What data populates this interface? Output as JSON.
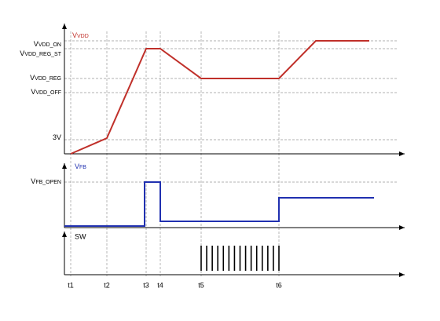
{
  "signals": {
    "vdd": {
      "name": {
        "main": "V",
        "sub": "VDD"
      },
      "levels": [
        {
          "main": "V",
          "sub": "VDD_ON"
        },
        {
          "main": "V",
          "sub": "VDD_REG_ST"
        },
        {
          "main": "V",
          "sub": "VDD_REG"
        },
        {
          "main": "V",
          "sub": "VDD_OFF"
        },
        {
          "main": "3V",
          "sub": ""
        }
      ]
    },
    "vfb": {
      "name": {
        "main": "V",
        "sub": "FB"
      },
      "levels": [
        {
          "main": "V",
          "sub": "FB_OPEN"
        }
      ]
    },
    "sw": {
      "name": "SW"
    }
  },
  "times": [
    "t1",
    "t2",
    "t3",
    "t4",
    "t5",
    "t6"
  ]
}
